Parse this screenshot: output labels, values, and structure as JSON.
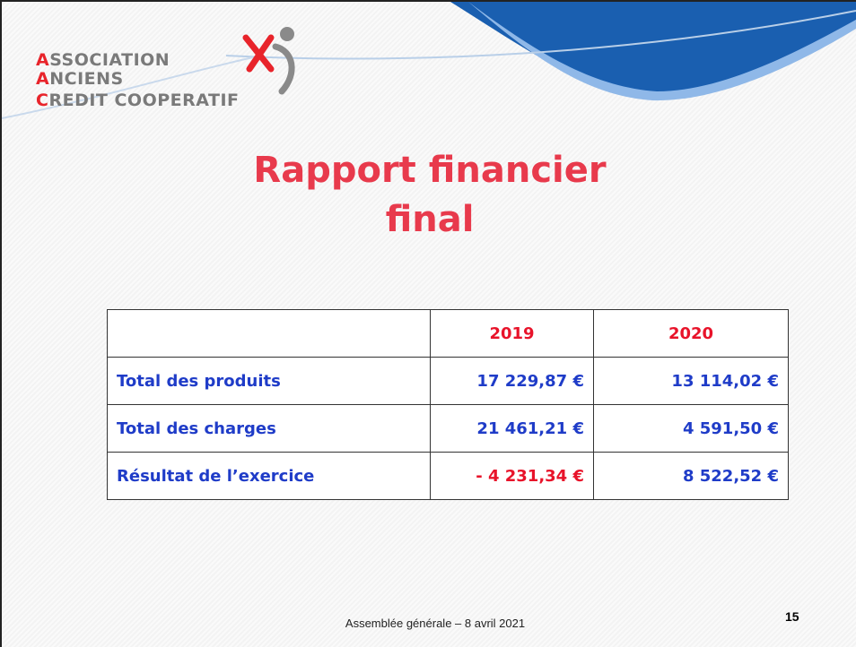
{
  "logo": {
    "lines": [
      "ASSOCIATION",
      "ANCIENS",
      "CREDIT COOPERATIF"
    ]
  },
  "title": {
    "lines": [
      "Rapport financier",
      "final"
    ]
  },
  "table": {
    "header": [
      "2019",
      "2020"
    ],
    "rows": [
      [
        "Total des produits",
        "17 229,87 €",
        "13 114,02 €"
      ],
      [
        "Total des charges",
        "21 461,21 €",
        "4 591,50 €"
      ],
      [
        "Résultat de l’exercice",
        "- 4 231,34 €",
        "8 522,52 €"
      ]
    ]
  },
  "footer": {
    "text": "Assemblée générale – 8 avril 2021",
    "page": "15"
  }
}
